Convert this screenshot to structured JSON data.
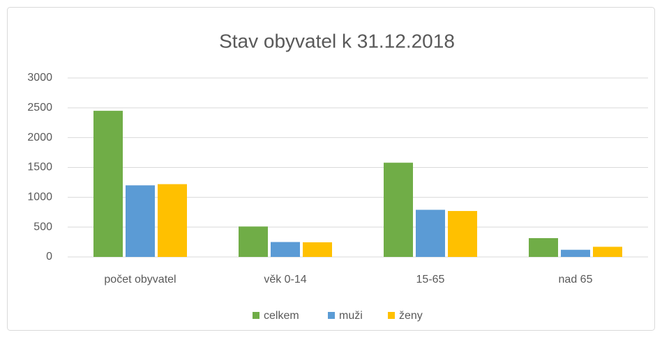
{
  "chart_data": {
    "type": "bar",
    "title": "Stav obyvatel k 31.12.2018",
    "categories": [
      "počet obyvatel",
      "věk 0-14",
      "15-65",
      "nad 65"
    ],
    "series": [
      {
        "name": "celkem",
        "color": "#70ad47",
        "values": [
          2450,
          510,
          1580,
          315
        ]
      },
      {
        "name": "muži",
        "color": "#5b9bd5",
        "values": [
          1200,
          250,
          790,
          120
        ]
      },
      {
        "name": "ženy",
        "color": "#ffc000",
        "values": [
          1220,
          245,
          770,
          170
        ]
      }
    ],
    "ylim": [
      0,
      3000
    ],
    "yticks": [
      0,
      500,
      1000,
      1500,
      2000,
      2500,
      3000
    ],
    "grid": true,
    "legend": "bottom"
  }
}
